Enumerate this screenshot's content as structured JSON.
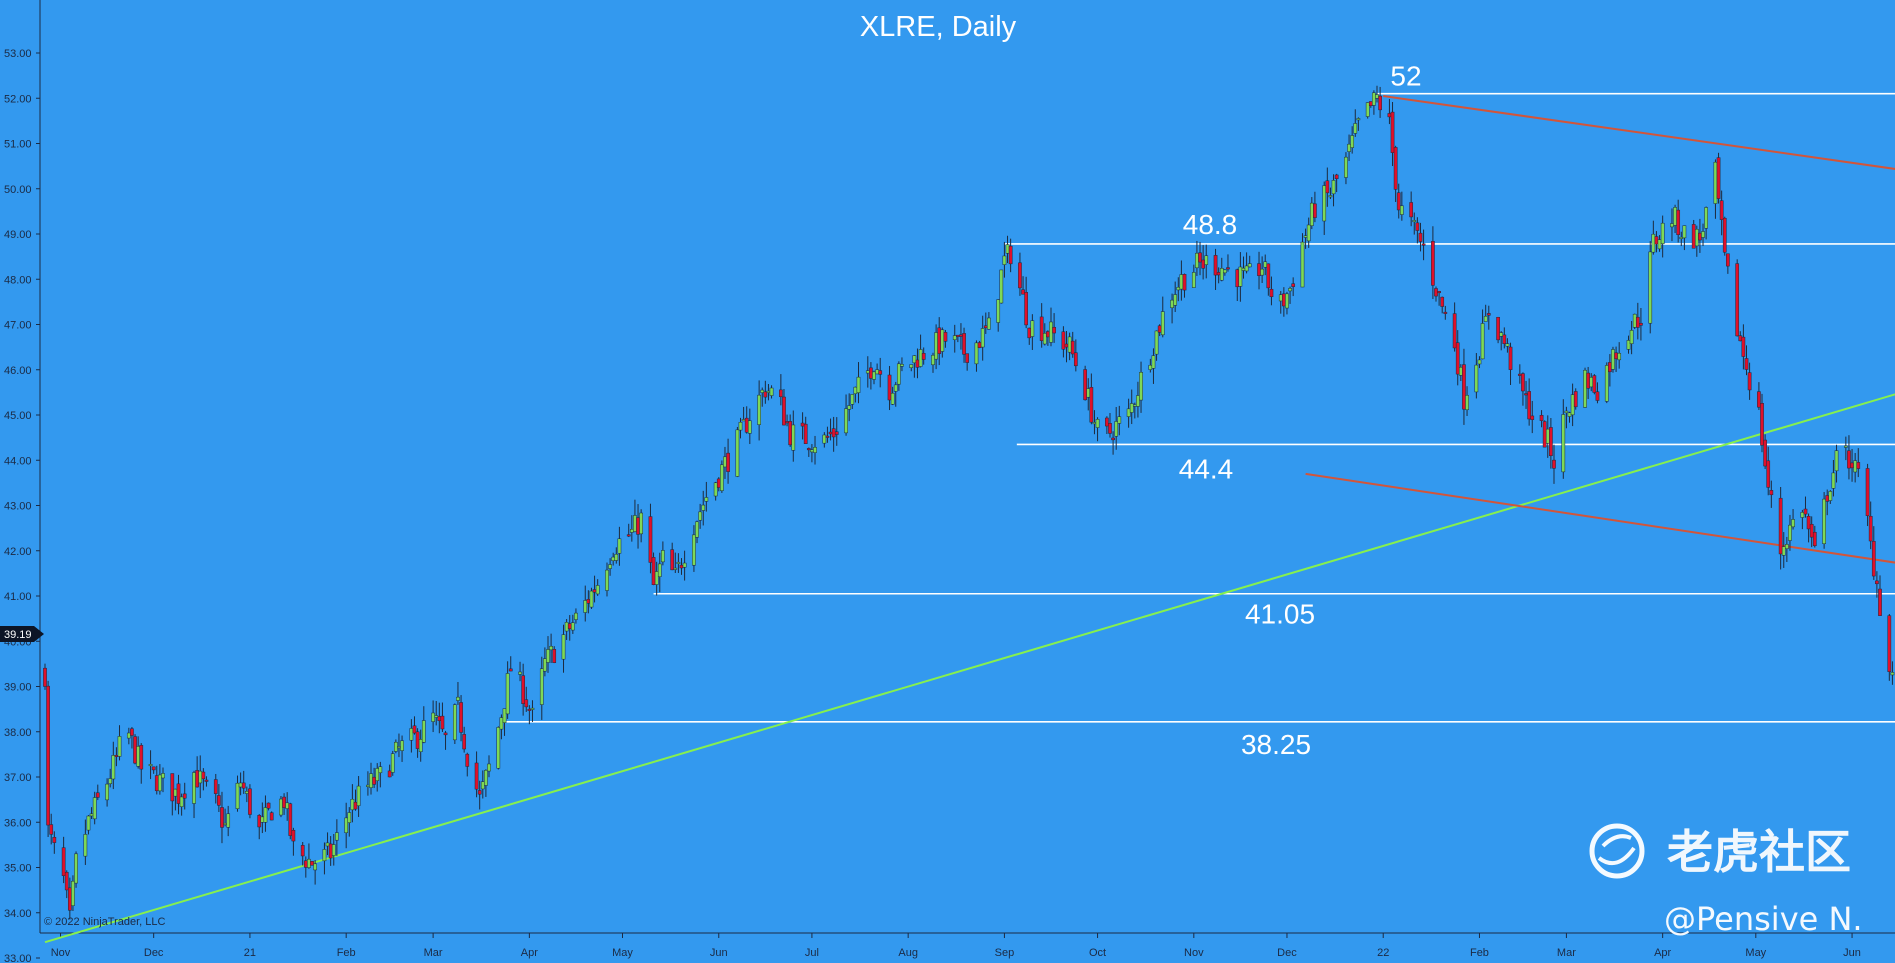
{
  "chart_data": {
    "type": "candlestick",
    "title": "XLRE, Daily",
    "current_price": "39.19",
    "copyright": "© 2022 NinjaTrader, LLC",
    "ylim": [
      32.8,
      53.1
    ],
    "y_ticks": [
      "53.00",
      "52.00",
      "51.00",
      "50.00",
      "49.00",
      "48.00",
      "47.00",
      "46.00",
      "45.00",
      "44.00",
      "43.00",
      "42.00",
      "41.00",
      "40.00",
      "39.00",
      "38.00",
      "37.00",
      "36.00",
      "35.00",
      "34.00",
      "33.00"
    ],
    "x_ticks": [
      "Nov",
      "Dec",
      "21",
      "Feb",
      "Mar",
      "Apr",
      "May",
      "Jun",
      "Jul",
      "Aug",
      "Sep",
      "Oct",
      "Nov",
      "Dec",
      "22",
      "Feb",
      "Mar",
      "Apr",
      "May",
      "Jun"
    ],
    "up_color": "#7ed957",
    "down_color": "#e0102a",
    "horizontal_levels": [
      {
        "label": "52",
        "value": 52.1,
        "from": "2021-12-30",
        "to": "2022-06-10"
      },
      {
        "label": "48.8",
        "value": 48.78,
        "from": "2021-09-01",
        "to": "2022-06-10"
      },
      {
        "label": "44.4",
        "value": 44.35,
        "from": "2021-09-05",
        "to": "2022-06-10"
      },
      {
        "label": "41.05",
        "value": 41.05,
        "from": "2021-05-11",
        "to": "2022-06-10"
      },
      {
        "label": "38.25",
        "value": 38.22,
        "from": "2021-03-23",
        "to": "2022-06-10"
      }
    ],
    "trendlines": [
      {
        "name": "uptrend",
        "color": "#86f04e",
        "from": [
          "2020-10-27",
          33.35
        ],
        "to": [
          "2022-06-10",
          45.4
        ]
      },
      {
        "name": "channel-upper",
        "color": "#d2553a",
        "from": [
          "2022-01-01",
          52.05
        ],
        "to": [
          "2022-06-10",
          50.4
        ]
      },
      {
        "name": "channel-lower",
        "color": "#d2553a",
        "from": [
          "2021-12-07",
          43.7
        ],
        "to": [
          "2022-06-10",
          41.7
        ]
      }
    ],
    "anchors": [
      [
        "2020-10-28",
        35.8
      ],
      [
        "2020-11-02",
        34.7
      ],
      [
        "2020-11-04",
        33.8
      ],
      [
        "2020-11-06",
        35.1
      ],
      [
        "2020-11-10",
        36.0
      ],
      [
        "2020-11-16",
        36.9
      ],
      [
        "2020-11-19",
        37.4
      ],
      [
        "2020-11-22",
        38.1
      ],
      [
        "2020-11-27",
        37.2
      ],
      [
        "2020-12-03",
        36.9
      ],
      [
        "2020-12-09",
        36.6
      ],
      [
        "2020-12-14",
        37.1
      ],
      [
        "2020-12-21",
        36.4
      ],
      [
        "2020-12-24",
        35.9
      ],
      [
        "2020-12-29",
        36.9
      ],
      [
        "2021-01-04",
        35.8
      ],
      [
        "2021-01-08",
        36.3
      ],
      [
        "2021-01-12",
        36.5
      ],
      [
        "2021-01-15",
        35.4
      ],
      [
        "2021-01-21",
        35.1
      ],
      [
        "2021-01-27",
        35.3
      ],
      [
        "2021-02-02",
        36.3
      ],
      [
        "2021-02-08",
        36.8
      ],
      [
        "2021-02-12",
        37.0
      ],
      [
        "2021-02-18",
        37.6
      ],
      [
        "2021-02-24",
        37.9
      ],
      [
        "2021-03-01",
        38.3
      ],
      [
        "2021-03-05",
        37.8
      ],
      [
        "2021-03-09",
        38.5
      ],
      [
        "2021-03-12",
        37.5
      ],
      [
        "2021-03-16",
        36.5
      ],
      [
        "2021-03-19",
        37.2
      ],
      [
        "2021-03-23",
        38.4
      ],
      [
        "2021-03-26",
        39.4
      ],
      [
        "2021-03-30",
        38.9
      ],
      [
        "2021-04-02",
        38.3
      ],
      [
        "2021-04-06",
        39.5
      ],
      [
        "2021-04-12",
        40.1
      ],
      [
        "2021-04-17",
        40.6
      ],
      [
        "2021-04-23",
        41.3
      ],
      [
        "2021-04-28",
        42.1
      ],
      [
        "2021-05-04",
        42.4
      ],
      [
        "2021-05-07",
        42.7
      ],
      [
        "2021-05-11",
        41.2
      ],
      [
        "2021-05-14",
        41.8
      ],
      [
        "2021-05-18",
        41.4
      ],
      [
        "2021-05-24",
        42.6
      ],
      [
        "2021-05-28",
        43.2
      ],
      [
        "2021-06-02",
        43.8
      ],
      [
        "2021-06-07",
        44.4
      ],
      [
        "2021-06-11",
        45.0
      ],
      [
        "2021-06-16",
        45.6
      ],
      [
        "2021-06-20",
        45.4
      ],
      [
        "2021-06-24",
        44.6
      ],
      [
        "2021-06-29",
        44.5
      ],
      [
        "2021-07-04",
        44.4
      ],
      [
        "2021-07-08",
        44.6
      ],
      [
        "2021-07-12",
        45.1
      ],
      [
        "2021-07-17",
        45.7
      ],
      [
        "2021-07-21",
        46.2
      ],
      [
        "2021-07-26",
        45.6
      ],
      [
        "2021-07-30",
        46.0
      ],
      [
        "2021-08-04",
        46.3
      ],
      [
        "2021-08-09",
        46.5
      ],
      [
        "2021-08-14",
        46.7
      ],
      [
        "2021-08-19",
        46.4
      ],
      [
        "2021-08-23",
        46.6
      ],
      [
        "2021-08-27",
        46.9
      ],
      [
        "2021-09-01",
        48.4
      ],
      [
        "2021-09-03",
        48.6
      ],
      [
        "2021-09-06",
        47.8
      ],
      [
        "2021-09-09",
        47.0
      ],
      [
        "2021-09-14",
        46.9
      ],
      [
        "2021-09-18",
        46.7
      ],
      [
        "2021-09-22",
        46.5
      ],
      [
        "2021-09-26",
        45.8
      ],
      [
        "2021-09-29",
        45.1
      ],
      [
        "2021-10-02",
        44.4
      ],
      [
        "2021-10-06",
        44.7
      ],
      [
        "2021-10-11",
        45.0
      ],
      [
        "2021-10-15",
        45.8
      ],
      [
        "2021-10-20",
        46.8
      ],
      [
        "2021-10-24",
        47.6
      ],
      [
        "2021-10-28",
        48.0
      ],
      [
        "2021-11-02",
        48.3
      ],
      [
        "2021-11-06",
        48.4
      ],
      [
        "2021-11-12",
        48.2
      ],
      [
        "2021-11-18",
        48.0
      ],
      [
        "2021-11-23",
        48.3
      ],
      [
        "2021-11-28",
        47.3
      ],
      [
        "2021-12-02",
        47.8
      ],
      [
        "2021-12-06",
        48.8
      ],
      [
        "2021-12-10",
        49.6
      ],
      [
        "2021-12-15",
        49.9
      ],
      [
        "2021-12-20",
        50.6
      ],
      [
        "2021-12-24",
        51.4
      ],
      [
        "2021-12-30",
        52.0
      ],
      [
        "2022-01-03",
        51.4
      ],
      [
        "2022-01-06",
        49.6
      ],
      [
        "2022-01-10",
        49.2
      ],
      [
        "2022-01-14",
        48.7
      ],
      [
        "2022-01-19",
        47.6
      ],
      [
        "2022-01-24",
        46.6
      ],
      [
        "2022-01-27",
        45.4
      ],
      [
        "2022-02-01",
        46.5
      ],
      [
        "2022-02-04",
        47.3
      ],
      [
        "2022-02-09",
        46.6
      ],
      [
        "2022-02-14",
        45.6
      ],
      [
        "2022-02-18",
        45.0
      ],
      [
        "2022-02-23",
        44.4
      ],
      [
        "2022-02-25",
        44.0
      ],
      [
        "2022-03-01",
        45.1
      ],
      [
        "2022-03-07",
        45.8
      ],
      [
        "2022-03-11",
        45.6
      ],
      [
        "2022-03-16",
        46.3
      ],
      [
        "2022-03-21",
        46.9
      ],
      [
        "2022-03-25",
        47.2
      ],
      [
        "2022-03-29",
        48.8
      ],
      [
        "2022-04-04",
        49.4
      ],
      [
        "2022-04-08",
        49.0
      ],
      [
        "2022-04-13",
        48.9
      ],
      [
        "2022-04-18",
        50.3
      ],
      [
        "2022-04-21",
        48.4
      ],
      [
        "2022-04-25",
        46.9
      ],
      [
        "2022-04-29",
        45.8
      ],
      [
        "2022-05-02",
        45.0
      ],
      [
        "2022-05-05",
        43.4
      ],
      [
        "2022-05-09",
        42.0
      ],
      [
        "2022-05-12",
        42.5
      ],
      [
        "2022-05-16",
        43.0
      ],
      [
        "2022-05-20",
        41.9
      ],
      [
        "2022-05-24",
        43.3
      ],
      [
        "2022-05-28",
        44.2
      ],
      [
        "2022-06-01",
        44.0
      ],
      [
        "2022-06-05",
        43.2
      ],
      [
        "2022-06-07",
        42.1
      ],
      [
        "2022-06-09",
        41.3
      ],
      [
        "2022-06-13",
        39.3
      ]
    ],
    "candle_range": [
      "2020-10-27",
      "2022-06-14"
    ]
  },
  "watermark": {
    "brand": "老虎社区",
    "handle": "@Pensive N."
  }
}
